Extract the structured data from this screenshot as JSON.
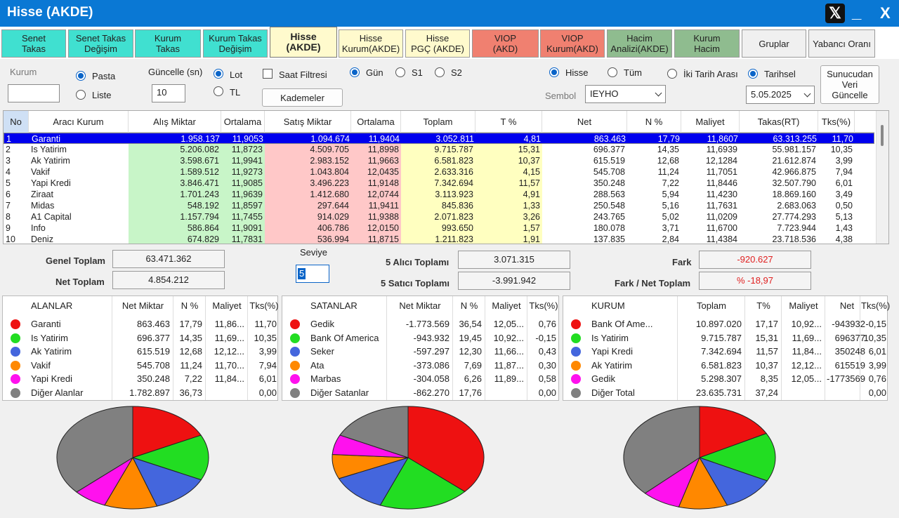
{
  "window": {
    "title": "Hisse (AKDE)",
    "minimize": "_",
    "close": "X"
  },
  "tabs": [
    {
      "label": "Senet\nTakas",
      "bg": "#40e0d0"
    },
    {
      "label": "Senet Takas\nDeğişim",
      "bg": "#40e0d0"
    },
    {
      "label": "Kurum\nTakas",
      "bg": "#40e0d0"
    },
    {
      "label": "Kurum Takas\nDeğişim",
      "bg": "#40e0d0"
    },
    {
      "label": "Hisse\n(AKDE)",
      "bg": "#fffacd",
      "active": true
    },
    {
      "label": "Hisse\nKurum(AKDE)",
      "bg": "#fffacd"
    },
    {
      "label": "Hisse\nPGÇ (AKDE)",
      "bg": "#fffacd"
    },
    {
      "label": "VIOP\n(AKD)",
      "bg": "#f08070"
    },
    {
      "label": "VIOP\nKurum(AKD)",
      "bg": "#f08070"
    },
    {
      "label": "Hacim\nAnalizi(AKDE)",
      "bg": "#8fbc8f"
    },
    {
      "label": "Kurum\nHacim",
      "bg": "#8fbc8f"
    },
    {
      "label": "Gruplar",
      "bg": "#f0f0f0"
    },
    {
      "label": "Yabancı Oranı",
      "bg": "#f0f0f0"
    }
  ],
  "controls": {
    "kurum_label": "Kurum",
    "kurum_value": "",
    "pasta": "Pasta",
    "liste": "Liste",
    "guncelle_label": "Güncelle (sn)",
    "guncelle_value": "10",
    "lot": "Lot",
    "tl": "TL",
    "saat_filtresi": "Saat Filtresi",
    "kademeler": "Kademeler",
    "gun": "Gün",
    "s1": "S1",
    "s2": "S2",
    "hisse": "Hisse",
    "tum": "Tüm",
    "iki_tarih": "İki Tarih Arası",
    "tarihsel": "Tarihsel",
    "sembol_label": "Sembol",
    "sembol_value": "IEYHO",
    "date_value": "5.05.2025",
    "sunucudan": "Sunucudan\nVeri\nGüncelle"
  },
  "grid": {
    "columns": [
      "No",
      "Aracı Kurum",
      "Alış Miktar",
      "Ortalama",
      "Satış Miktar",
      "Ortalama",
      "Toplam",
      "T %",
      "Net",
      "N %",
      "Maliyet",
      "Takas(RT)",
      "Tks(%)"
    ],
    "rows": [
      [
        "1",
        "Garanti",
        "1.958.137",
        "11,9053",
        "1.094.674",
        "11,9404",
        "3.052.811",
        "4,81",
        "863.463",
        "17,79",
        "11,8607",
        "63.313.255",
        "11,70"
      ],
      [
        "2",
        "Is Yatirim",
        "5.206.082",
        "11,8723",
        "4.509.705",
        "11,8998",
        "9.715.787",
        "15,31",
        "696.377",
        "14,35",
        "11,6939",
        "55.981.157",
        "10,35"
      ],
      [
        "3",
        "Ak Yatirim",
        "3.598.671",
        "11,9941",
        "2.983.152",
        "11,9663",
        "6.581.823",
        "10,37",
        "615.519",
        "12,68",
        "12,1284",
        "21.612.874",
        "3,99"
      ],
      [
        "4",
        "Vakif",
        "1.589.512",
        "11,9273",
        "1.043.804",
        "12,0435",
        "2.633.316",
        "4,15",
        "545.708",
        "11,24",
        "11,7051",
        "42.966.875",
        "7,94"
      ],
      [
        "5",
        "Yapi Kredi",
        "3.846.471",
        "11,9085",
        "3.496.223",
        "11,9148",
        "7.342.694",
        "11,57",
        "350.248",
        "7,22",
        "11,8446",
        "32.507.790",
        "6,01"
      ],
      [
        "6",
        "Ziraat",
        "1.701.243",
        "11,9639",
        "1.412.680",
        "12,0744",
        "3.113.923",
        "4,91",
        "288.563",
        "5,94",
        "11,4230",
        "18.869.160",
        "3,49"
      ],
      [
        "7",
        "Midas",
        "548.192",
        "11,8597",
        "297.644",
        "11,9411",
        "845.836",
        "1,33",
        "250.548",
        "5,16",
        "11,7631",
        "2.683.063",
        "0,50"
      ],
      [
        "8",
        "A1 Capital",
        "1.157.794",
        "11,7455",
        "914.029",
        "11,9388",
        "2.071.823",
        "3,26",
        "243.765",
        "5,02",
        "11,0209",
        "27.774.293",
        "5,13"
      ],
      [
        "9",
        "Info",
        "586.864",
        "11,9091",
        "406.786",
        "12,0150",
        "993.650",
        "1,57",
        "180.078",
        "3,71",
        "11,6700",
        "7.723.944",
        "1,43"
      ],
      [
        "10",
        "Deniz",
        "674.829",
        "11,7831",
        "536.994",
        "11,8715",
        "1.211.823",
        "1,91",
        "137.835",
        "2,84",
        "11,4384",
        "23.718.536",
        "4,38"
      ]
    ]
  },
  "summary": {
    "genel_toplam_label": "Genel Toplam",
    "genel_toplam": "63.471.362",
    "net_toplam_label": "Net Toplam",
    "net_toplam": "4.854.212",
    "seviye_label": "Seviye",
    "seviye_value": "5",
    "alici_label": "5  Alıcı Toplamı",
    "alici_value": "3.071.315",
    "satici_label": "5  Satıcı Toplamı",
    "satici_value": "-3.991.942",
    "fark_label": "Fark",
    "fark_value": "-920.627",
    "fark_net_label": "Fark / Net Toplam",
    "fark_net_value": "% -18,97"
  },
  "colors": [
    "#ee1111",
    "#22dd22",
    "#4466dd",
    "#ff8800",
    "#ff11ee",
    "#808080"
  ],
  "alanlar": {
    "headers": [
      "ALANLAR",
      "Net Miktar",
      "N %",
      "Maliyet",
      "Tks(%)"
    ],
    "rows": [
      [
        "Garanti",
        "863.463",
        "17,79",
        "11,86...",
        "11,70"
      ],
      [
        "Is Yatirim",
        "696.377",
        "14,35",
        "11,69...",
        "10,35"
      ],
      [
        "Ak Yatirim",
        "615.519",
        "12,68",
        "12,12...",
        "3,99"
      ],
      [
        "Vakif",
        "545.708",
        "11,24",
        "11,70...",
        "7,94"
      ],
      [
        "Yapi Kredi",
        "350.248",
        "7,22",
        "11,84...",
        "6,01"
      ],
      [
        "Diğer Alanlar",
        "1.782.897",
        "36,73",
        "",
        "0,00"
      ]
    ],
    "pie": [
      17.79,
      14.35,
      12.68,
      11.24,
      7.22,
      36.73
    ]
  },
  "satanlar": {
    "headers": [
      "SATANLAR",
      "Net Miktar",
      "N %",
      "Maliyet",
      "Tks(%)"
    ],
    "rows": [
      [
        "Gedik",
        "-1.773.569",
        "36,54",
        "12,05...",
        "0,76"
      ],
      [
        "Bank Of America",
        "-943.932",
        "19,45",
        "10,92...",
        "-0,15"
      ],
      [
        "Seker",
        "-597.297",
        "12,30",
        "11,66...",
        "0,43"
      ],
      [
        "Ata",
        "-373.086",
        "7,69",
        "11,87...",
        "0,30"
      ],
      [
        "Marbas",
        "-304.058",
        "6,26",
        "11,89...",
        "0,58"
      ],
      [
        "Diğer Satanlar",
        "-862.270",
        "17,76",
        "",
        "0,00"
      ]
    ],
    "pie": [
      36.54,
      19.45,
      12.3,
      7.69,
      6.26,
      17.76
    ]
  },
  "kurum": {
    "headers": [
      "KURUM",
      "Toplam",
      "T%",
      "Maliyet",
      "Net",
      "Tks(%)"
    ],
    "rows": [
      [
        "Bank Of Ame...",
        "10.897.020",
        "17,17",
        "10,92...",
        "-943932",
        "-0,15"
      ],
      [
        "Is Yatirim",
        "9.715.787",
        "15,31",
        "11,69...",
        "696377",
        "10,35"
      ],
      [
        "Yapi Kredi",
        "7.342.694",
        "11,57",
        "11,84...",
        "350248",
        "6,01"
      ],
      [
        "Ak Yatirim",
        "6.581.823",
        "10,37",
        "12,12...",
        "615519",
        "3,99"
      ],
      [
        "Gedik",
        "5.298.307",
        "8,35",
        "12,05...",
        "-1773569",
        "0,76"
      ],
      [
        "Diğer Total",
        "23.635.731",
        "37,24",
        "",
        "",
        "0,00"
      ]
    ],
    "pie": [
      17.17,
      15.31,
      11.57,
      10.37,
      8.35,
      37.24
    ]
  }
}
